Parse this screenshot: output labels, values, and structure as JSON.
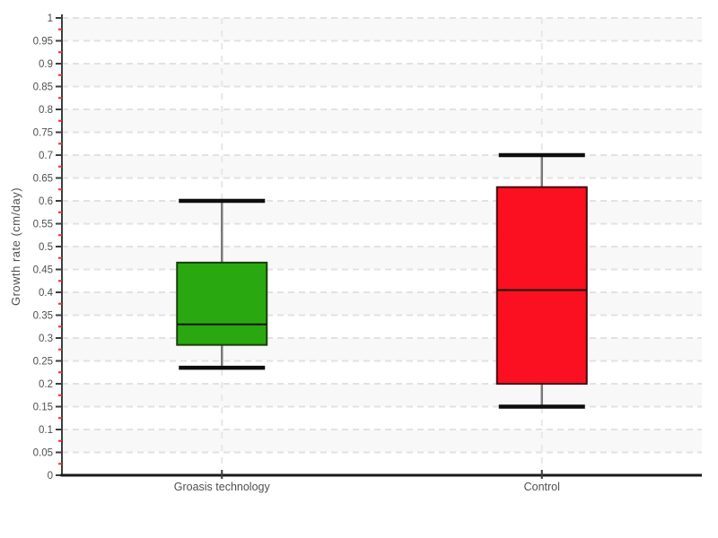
{
  "chart_data": {
    "type": "boxplot",
    "title": "",
    "xlabel": "",
    "ylabel": "Growth rate (cm/day)",
    "ylim": [
      0,
      1
    ],
    "y_major_step": 0.05,
    "y_minor_step": 0.025,
    "y_tick_labels": [
      "0",
      "0.05",
      "0.1",
      "0.15",
      "0.2",
      "0.25",
      "0.3",
      "0.35",
      "0.4",
      "0.45",
      "0.5",
      "0.55",
      "0.6",
      "0.65",
      "0.7",
      "0.75",
      "0.8",
      "0.85",
      "0.9",
      "0.95",
      "1"
    ],
    "categories": [
      "Groasis technology",
      "Control"
    ],
    "series": [
      {
        "name": "Groasis technology",
        "low": 0.235,
        "q1": 0.285,
        "median": 0.33,
        "q3": 0.465,
        "high": 0.6,
        "fill": "#2aa810",
        "border": "#173f08"
      },
      {
        "name": "Control",
        "low": 0.15,
        "q1": 0.2,
        "median": 0.405,
        "q3": 0.63,
        "high": 0.7,
        "fill": "#fa1020",
        "border": "#46080e"
      }
    ],
    "legend_position": "none",
    "grid": {
      "horizontal": "dashed",
      "bands": "alternating-horizontal",
      "vertical_category_lines": "dashed"
    }
  },
  "colors": {
    "background": "#ffffff",
    "band": "#f8f8f8",
    "grid": "#e2e2e2",
    "category_line": "#e7e7e7",
    "axis_y": "#3d3d3d",
    "axis_x": "#1a1a1a",
    "tick_major": "#3d3d3d",
    "tick_minor": "#e73323",
    "text": "#4f4f4f",
    "whisker": "#7a7a7a",
    "whisker_cap": "#0d0d0d",
    "median": "#111111"
  }
}
